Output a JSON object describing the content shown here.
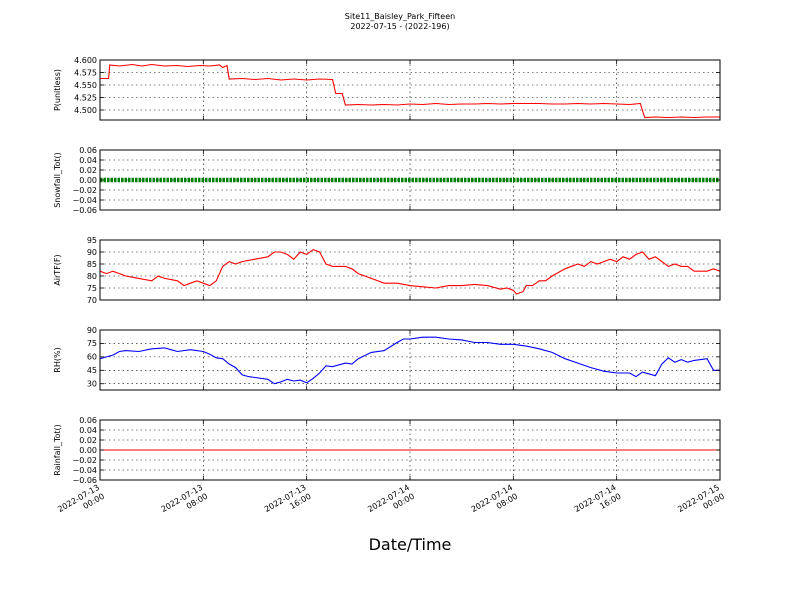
{
  "chart_data": {
    "type": "line",
    "title": "Site11_Baisley_Park_Fifteen",
    "subtitle": "2022-07-15 - (2022-196)",
    "xlabel": "Date/Time",
    "grid": true,
    "x_range": [
      "2022-07-13 00:00",
      "2022-07-15 00:00"
    ],
    "x_ticks": [
      {
        "time": "2022-07-13 00:00",
        "line1": "2022-07-13",
        "line2": "00:00"
      },
      {
        "time": "2022-07-13 08:00",
        "line1": "2022-07-13",
        "line2": "08:00"
      },
      {
        "time": "2022-07-13 16:00",
        "line1": "2022-07-13",
        "line2": "16:00"
      },
      {
        "time": "2022-07-14 00:00",
        "line1": "2022-07-14",
        "line2": "00:00"
      },
      {
        "time": "2022-07-14 08:00",
        "line1": "2022-07-14",
        "line2": "08:00"
      },
      {
        "time": "2022-07-14 16:00",
        "line1": "2022-07-14",
        "line2": "16:00"
      },
      {
        "time": "2022-07-15 00:00",
        "line1": "2022-07-15",
        "line2": "00:00"
      }
    ],
    "panels": [
      {
        "ylabel": "P(unitless)",
        "ylim": [
          4.48,
          4.6
        ],
        "yticks": [
          4.5,
          4.525,
          4.55,
          4.575,
          4.6
        ],
        "tick_labels": [
          "4.500",
          "4.525",
          "4.550",
          "4.575",
          "4.600"
        ],
        "color": "#ff0000",
        "style": "line",
        "points": [
          [
            "2022-07-13 00:00",
            4.563
          ],
          [
            "2022-07-13 00:40",
            4.563
          ],
          [
            "2022-07-13 00:45",
            4.59
          ],
          [
            "2022-07-13 01:30",
            4.588
          ],
          [
            "2022-07-13 02:30",
            4.591
          ],
          [
            "2022-07-13 03:15",
            4.588
          ],
          [
            "2022-07-13 04:00",
            4.591
          ],
          [
            "2022-07-13 05:00",
            4.588
          ],
          [
            "2022-07-13 06:00",
            4.589
          ],
          [
            "2022-07-13 06:45",
            4.587
          ],
          [
            "2022-07-13 07:45",
            4.589
          ],
          [
            "2022-07-13 08:30",
            4.588
          ],
          [
            "2022-07-13 09:15",
            4.59
          ],
          [
            "2022-07-13 09:30",
            4.585
          ],
          [
            "2022-07-13 09:50",
            4.589
          ],
          [
            "2022-07-13 10:00",
            4.562
          ],
          [
            "2022-07-13 11:00",
            4.563
          ],
          [
            "2022-07-13 12:00",
            4.561
          ],
          [
            "2022-07-13 13:00",
            4.563
          ],
          [
            "2022-07-13 14:00",
            4.56
          ],
          [
            "2022-07-13 15:00",
            4.562
          ],
          [
            "2022-07-13 16:00",
            4.56
          ],
          [
            "2022-07-13 17:00",
            4.562
          ],
          [
            "2022-07-13 18:00",
            4.561
          ],
          [
            "2022-07-13 18:15",
            4.533
          ],
          [
            "2022-07-13 18:45",
            4.533
          ],
          [
            "2022-07-13 19:00",
            4.51
          ],
          [
            "2022-07-13 20:00",
            4.511
          ],
          [
            "2022-07-13 21:00",
            4.51
          ],
          [
            "2022-07-13 22:00",
            4.511
          ],
          [
            "2022-07-13 23:00",
            4.51
          ],
          [
            "2022-07-14 00:00",
            4.512
          ],
          [
            "2022-07-14 01:00",
            4.511
          ],
          [
            "2022-07-14 02:00",
            4.513
          ],
          [
            "2022-07-14 03:00",
            4.511
          ],
          [
            "2022-07-14 04:00",
            4.512
          ],
          [
            "2022-07-14 05:00",
            4.512
          ],
          [
            "2022-07-14 06:00",
            4.513
          ],
          [
            "2022-07-14 07:00",
            4.512
          ],
          [
            "2022-07-14 08:00",
            4.513
          ],
          [
            "2022-07-14 09:00",
            4.513
          ],
          [
            "2022-07-14 10:00",
            4.513
          ],
          [
            "2022-07-14 11:00",
            4.512
          ],
          [
            "2022-07-14 12:00",
            4.512
          ],
          [
            "2022-07-14 13:00",
            4.513
          ],
          [
            "2022-07-14 14:00",
            4.512
          ],
          [
            "2022-07-14 15:00",
            4.513
          ],
          [
            "2022-07-14 16:00",
            4.512
          ],
          [
            "2022-07-14 17:00",
            4.511
          ],
          [
            "2022-07-14 17:50",
            4.513
          ],
          [
            "2022-07-14 18:10",
            4.485
          ],
          [
            "2022-07-14 19:00",
            4.486
          ],
          [
            "2022-07-14 20:00",
            4.485
          ],
          [
            "2022-07-14 21:00",
            4.486
          ],
          [
            "2022-07-14 22:00",
            4.485
          ],
          [
            "2022-07-14 23:00",
            4.486
          ],
          [
            "2022-07-15 00:00",
            4.486
          ]
        ]
      },
      {
        "ylabel": "Snowfall_Tot()",
        "ylim": [
          -0.06,
          0.06
        ],
        "yticks": [
          -0.06,
          -0.04,
          -0.02,
          0.0,
          0.02,
          0.04,
          0.06
        ],
        "tick_labels": [
          "−0.06",
          "−0.04",
          "−0.02",
          "0.00",
          "0.02",
          "0.04",
          "0.06"
        ],
        "color": "#008000",
        "style": "markers",
        "points": [
          [
            "2022-07-13 00:00",
            0
          ],
          [
            "2022-07-15 00:00",
            0
          ]
        ]
      },
      {
        "ylabel": "AirTF(F)",
        "ylim": [
          70,
          95
        ],
        "yticks": [
          70,
          75,
          80,
          85,
          90,
          95
        ],
        "tick_labels": [
          "70",
          "75",
          "80",
          "85",
          "90",
          "95"
        ],
        "color": "#ff0000",
        "style": "line",
        "points": [
          [
            "2022-07-13 00:00",
            82
          ],
          [
            "2022-07-13 00:30",
            81
          ],
          [
            "2022-07-13 01:00",
            82
          ],
          [
            "2022-07-13 02:00",
            80
          ],
          [
            "2022-07-13 03:00",
            79
          ],
          [
            "2022-07-13 04:00",
            78
          ],
          [
            "2022-07-13 04:30",
            80
          ],
          [
            "2022-07-13 05:00",
            79
          ],
          [
            "2022-07-13 06:00",
            78
          ],
          [
            "2022-07-13 06:30",
            76
          ],
          [
            "2022-07-13 07:00",
            77
          ],
          [
            "2022-07-13 07:30",
            78
          ],
          [
            "2022-07-13 08:00",
            77
          ],
          [
            "2022-07-13 08:30",
            76
          ],
          [
            "2022-07-13 09:00",
            78
          ],
          [
            "2022-07-13 09:30",
            84
          ],
          [
            "2022-07-13 10:00",
            86
          ],
          [
            "2022-07-13 10:30",
            85
          ],
          [
            "2022-07-13 11:00",
            86
          ],
          [
            "2022-07-13 12:00",
            87
          ],
          [
            "2022-07-13 13:00",
            88
          ],
          [
            "2022-07-13 13:30",
            90
          ],
          [
            "2022-07-13 14:00",
            90
          ],
          [
            "2022-07-13 14:30",
            89
          ],
          [
            "2022-07-13 15:00",
            87
          ],
          [
            "2022-07-13 15:30",
            90
          ],
          [
            "2022-07-13 16:00",
            89
          ],
          [
            "2022-07-13 16:30",
            91
          ],
          [
            "2022-07-13 17:00",
            90
          ],
          [
            "2022-07-13 17:30",
            85
          ],
          [
            "2022-07-13 18:00",
            84
          ],
          [
            "2022-07-13 19:00",
            84
          ],
          [
            "2022-07-13 19:30",
            83
          ],
          [
            "2022-07-13 20:00",
            81
          ],
          [
            "2022-07-13 21:00",
            79
          ],
          [
            "2022-07-13 22:00",
            77
          ],
          [
            "2022-07-13 23:00",
            77
          ],
          [
            "2022-07-14 00:00",
            76
          ],
          [
            "2022-07-14 01:00",
            75.5
          ],
          [
            "2022-07-14 02:00",
            75
          ],
          [
            "2022-07-14 03:00",
            76
          ],
          [
            "2022-07-14 04:00",
            76
          ],
          [
            "2022-07-14 05:00",
            76.5
          ],
          [
            "2022-07-14 06:00",
            76
          ],
          [
            "2022-07-14 07:00",
            74.5
          ],
          [
            "2022-07-14 07:30",
            75
          ],
          [
            "2022-07-14 08:00",
            74
          ],
          [
            "2022-07-14 08:15",
            72.5
          ],
          [
            "2022-07-14 08:45",
            73.5
          ],
          [
            "2022-07-14 09:00",
            76
          ],
          [
            "2022-07-14 09:30",
            76
          ],
          [
            "2022-07-14 10:00",
            78
          ],
          [
            "2022-07-14 10:30",
            78
          ],
          [
            "2022-07-14 11:00",
            80
          ],
          [
            "2022-07-14 12:00",
            83
          ],
          [
            "2022-07-14 13:00",
            85
          ],
          [
            "2022-07-14 13:30",
            84
          ],
          [
            "2022-07-14 14:00",
            86
          ],
          [
            "2022-07-14 14:30",
            85
          ],
          [
            "2022-07-14 15:00",
            86
          ],
          [
            "2022-07-14 15:30",
            87
          ],
          [
            "2022-07-14 16:00",
            86
          ],
          [
            "2022-07-14 16:30",
            88
          ],
          [
            "2022-07-14 17:00",
            87
          ],
          [
            "2022-07-14 17:30",
            89
          ],
          [
            "2022-07-14 18:00",
            90
          ],
          [
            "2022-07-14 18:30",
            87
          ],
          [
            "2022-07-14 19:00",
            88
          ],
          [
            "2022-07-14 19:30",
            86
          ],
          [
            "2022-07-14 20:00",
            84
          ],
          [
            "2022-07-14 20:30",
            85
          ],
          [
            "2022-07-14 21:00",
            84
          ],
          [
            "2022-07-14 21:30",
            84
          ],
          [
            "2022-07-14 22:00",
            82
          ],
          [
            "2022-07-14 23:00",
            82
          ],
          [
            "2022-07-14 23:30",
            83
          ],
          [
            "2022-07-15 00:00",
            82
          ]
        ]
      },
      {
        "ylabel": "RH(%)",
        "ylim": [
          23,
          90
        ],
        "yticks": [
          30,
          45,
          60,
          75,
          90
        ],
        "tick_labels": [
          "30",
          "45",
          "60",
          "75",
          "90"
        ],
        "color": "#0000ff",
        "style": "line",
        "points": [
          [
            "2022-07-13 00:00",
            58
          ],
          [
            "2022-07-13 00:30",
            60
          ],
          [
            "2022-07-13 01:00",
            62
          ],
          [
            "2022-07-13 01:30",
            66
          ],
          [
            "2022-07-13 02:00",
            67
          ],
          [
            "2022-07-13 03:00",
            66
          ],
          [
            "2022-07-13 04:00",
            69
          ],
          [
            "2022-07-13 05:00",
            70
          ],
          [
            "2022-07-13 05:30",
            68
          ],
          [
            "2022-07-13 06:00",
            66
          ],
          [
            "2022-07-13 07:00",
            68
          ],
          [
            "2022-07-13 08:00",
            66
          ],
          [
            "2022-07-13 08:30",
            63
          ],
          [
            "2022-07-13 09:00",
            59
          ],
          [
            "2022-07-13 09:30",
            58
          ],
          [
            "2022-07-13 10:00",
            52
          ],
          [
            "2022-07-13 10:30",
            48
          ],
          [
            "2022-07-13 11:00",
            40
          ],
          [
            "2022-07-13 11:30",
            38
          ],
          [
            "2022-07-13 12:00",
            37
          ],
          [
            "2022-07-13 13:00",
            35
          ],
          [
            "2022-07-13 13:30",
            30
          ],
          [
            "2022-07-13 14:00",
            32
          ],
          [
            "2022-07-13 14:30",
            35
          ],
          [
            "2022-07-13 15:00",
            33
          ],
          [
            "2022-07-13 15:30",
            34
          ],
          [
            "2022-07-13 16:00",
            31
          ],
          [
            "2022-07-13 16:30",
            36
          ],
          [
            "2022-07-13 17:00",
            42
          ],
          [
            "2022-07-13 17:30",
            50
          ],
          [
            "2022-07-13 18:00",
            49
          ],
          [
            "2022-07-13 19:00",
            53
          ],
          [
            "2022-07-13 19:30",
            52
          ],
          [
            "2022-07-13 20:00",
            58
          ],
          [
            "2022-07-13 21:00",
            65
          ],
          [
            "2022-07-13 22:00",
            67
          ],
          [
            "2022-07-13 23:00",
            76
          ],
          [
            "2022-07-13 23:30",
            80
          ],
          [
            "2022-07-14 00:00",
            80
          ],
          [
            "2022-07-14 01:00",
            82
          ],
          [
            "2022-07-14 02:00",
            82
          ],
          [
            "2022-07-14 03:00",
            80
          ],
          [
            "2022-07-14 04:00",
            79
          ],
          [
            "2022-07-14 05:00",
            76
          ],
          [
            "2022-07-14 06:00",
            76
          ],
          [
            "2022-07-14 07:00",
            74
          ],
          [
            "2022-07-14 08:00",
            74
          ],
          [
            "2022-07-14 09:00",
            72
          ],
          [
            "2022-07-14 10:00",
            69
          ],
          [
            "2022-07-14 11:00",
            65
          ],
          [
            "2022-07-14 12:00",
            58
          ],
          [
            "2022-07-14 13:00",
            53
          ],
          [
            "2022-07-14 14:00",
            48
          ],
          [
            "2022-07-14 15:00",
            44
          ],
          [
            "2022-07-14 16:00",
            42
          ],
          [
            "2022-07-14 17:00",
            42
          ],
          [
            "2022-07-14 17:30",
            38
          ],
          [
            "2022-07-14 18:00",
            43
          ],
          [
            "2022-07-14 19:00",
            39
          ],
          [
            "2022-07-14 19:30",
            52
          ],
          [
            "2022-07-14 20:00",
            59
          ],
          [
            "2022-07-14 20:30",
            54
          ],
          [
            "2022-07-14 21:00",
            57
          ],
          [
            "2022-07-14 21:30",
            54
          ],
          [
            "2022-07-14 22:00",
            56
          ],
          [
            "2022-07-14 23:00",
            58
          ],
          [
            "2022-07-14 23:30",
            45
          ],
          [
            "2022-07-15 00:00",
            45
          ]
        ]
      },
      {
        "ylabel": "Rainfall_Tot()",
        "ylim": [
          -0.06,
          0.06
        ],
        "yticks": [
          -0.06,
          -0.04,
          -0.02,
          0.0,
          0.02,
          0.04,
          0.06
        ],
        "tick_labels": [
          "−0.06",
          "−0.04",
          "−0.02",
          "0.00",
          "0.02",
          "0.04",
          "0.06"
        ],
        "color": "#ff0000",
        "style": "line",
        "points": [
          [
            "2022-07-13 00:00",
            0
          ],
          [
            "2022-07-15 00:00",
            0
          ]
        ]
      }
    ]
  }
}
